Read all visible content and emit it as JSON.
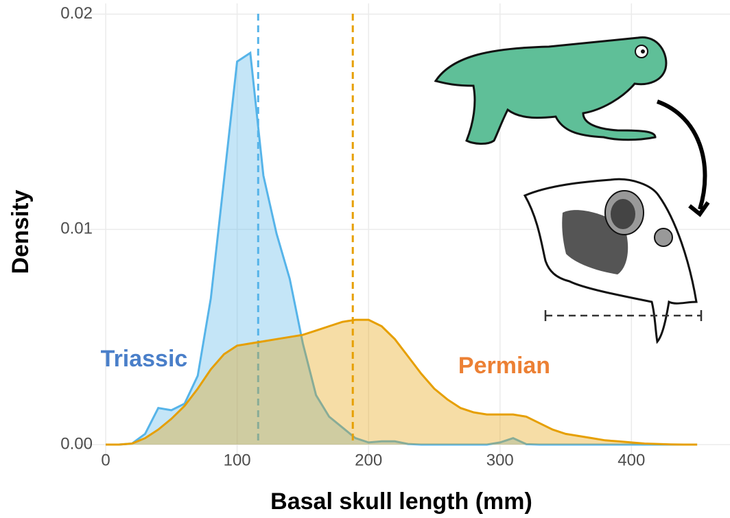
{
  "chart_data": {
    "type": "density",
    "x_label": "Basal skull length (mm)",
    "y_label": "Density",
    "x": [
      0,
      10,
      20,
      30,
      40,
      50,
      60,
      70,
      80,
      90,
      100,
      110,
      120,
      130,
      140,
      150,
      160,
      170,
      180,
      190,
      200,
      210,
      220,
      230,
      240,
      250,
      260,
      270,
      280,
      290,
      300,
      310,
      320,
      330,
      340,
      350,
      360,
      370,
      380,
      390,
      400,
      410,
      420,
      430,
      440,
      450
    ],
    "series": [
      {
        "name": "Triassic",
        "color": "#56b4e9",
        "label_color": "#4a7fc9",
        "mean": 116,
        "values": [
          0,
          0,
          5e-05,
          0.0005,
          0.0017,
          0.0016,
          0.0019,
          0.0032,
          0.0068,
          0.0123,
          0.0178,
          0.0182,
          0.0125,
          0.0098,
          0.0077,
          0.0047,
          0.0023,
          0.0013,
          0.0008,
          0.0003,
          0.0001,
          0.00015,
          0.00015,
          3e-05,
          0,
          0,
          0,
          0,
          0,
          0,
          0.0001,
          0.0003,
          2e-05,
          0,
          0,
          0,
          0,
          0,
          0,
          0,
          0,
          0,
          0,
          0,
          0,
          0
        ]
      },
      {
        "name": "Permian",
        "color": "#e69f00",
        "label_color": "#ec8034",
        "mean": 188,
        "values": [
          0,
          0,
          5e-05,
          0.0003,
          0.0007,
          0.0012,
          0.0018,
          0.0026,
          0.0035,
          0.0042,
          0.0046,
          0.0047,
          0.0048,
          0.0049,
          0.005,
          0.0051,
          0.0053,
          0.0055,
          0.0057,
          0.0058,
          0.0058,
          0.0055,
          0.0049,
          0.0041,
          0.0033,
          0.0026,
          0.0021,
          0.0017,
          0.0015,
          0.0014,
          0.0014,
          0.0014,
          0.0013,
          0.001,
          0.0007,
          0.0005,
          0.0004,
          0.0003,
          0.0002,
          0.00015,
          0.0001,
          5e-05,
          3e-05,
          1e-05,
          0,
          0
        ]
      }
    ],
    "xlim": [
      -23,
      475
    ],
    "ylim": [
      -0.0007,
      0.0205
    ],
    "xticks": [
      0,
      100,
      200,
      300,
      400
    ],
    "yticks": [
      {
        "value": 0,
        "label": "0.00"
      },
      0.01,
      0.02
    ],
    "grid": true
  }
}
